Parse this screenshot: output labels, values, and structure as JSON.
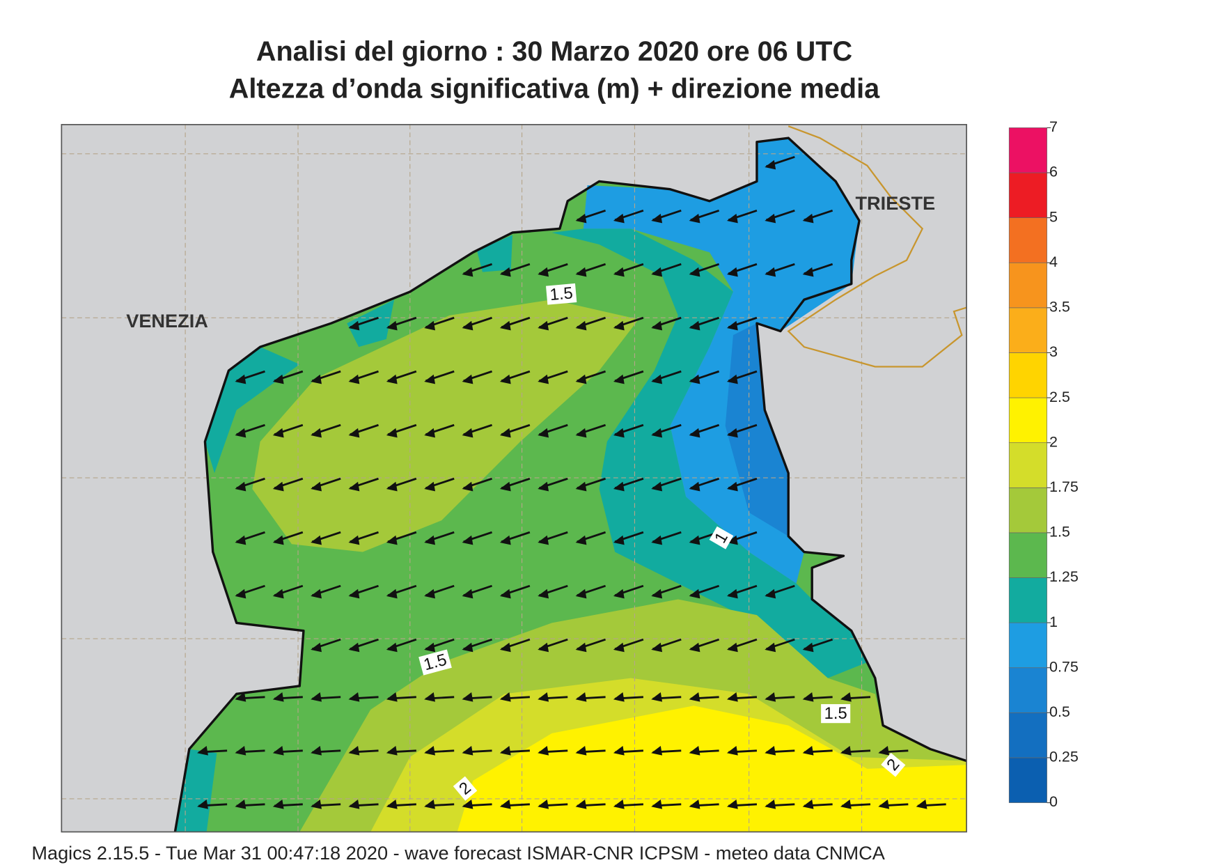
{
  "title": "Analisi del giorno :  30   Marzo   2020   ore 06 UTC",
  "subtitle": "Altezza d’onda significativa (m) + direzione media",
  "places": [
    "VENEZIA",
    "TRIESTE"
  ],
  "contour_labels": [
    1.5,
    1,
    1.5,
    1.5,
    2,
    2
  ],
  "colorbar": {
    "levels": [
      0,
      0.25,
      0.5,
      0.75,
      1,
      1.25,
      1.5,
      1.75,
      2,
      2.5,
      3,
      3.5,
      4,
      5,
      6,
      7
    ],
    "colors": [
      "#0b5fb0",
      "#136fc0",
      "#1a84d2",
      "#1e9de2",
      "#12ab9f",
      "#5cb84e",
      "#a4c93a",
      "#d4dd2a",
      "#fff200",
      "#ffd400",
      "#fbae1a",
      "#f7941d",
      "#f37021",
      "#ed1c24",
      "#ec1163"
    ]
  },
  "footer": "Magics 2.15.5 - Tue Mar 31 00:47:18 2020 - wave forecast  ISMAR-CNR  ICPSM - meteo data   CNMCA"
}
